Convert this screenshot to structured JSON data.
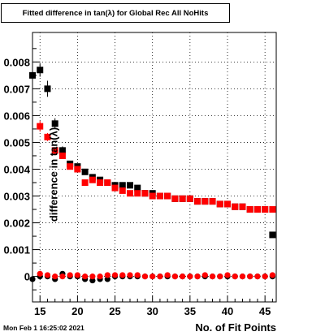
{
  "chart_data": {
    "type": "scatter",
    "title": "Fitted difference in tan(λ) for Global Rec All NoHits",
    "xlabel": "No. of Fit Points",
    "ylabel": "difference in tan(λ)",
    "xlim": [
      14,
      46.5
    ],
    "ylim": [
      -0.00095,
      0.0091
    ],
    "x_ticks": [
      15,
      20,
      25,
      30,
      35,
      40,
      45
    ],
    "y_ticks": [
      0,
      0.001,
      0.002,
      0.003,
      0.004,
      0.005,
      0.006,
      0.007,
      0.008
    ],
    "y_tick_labels": [
      "0",
      "0.001",
      "0.002",
      "0.003",
      "0.004",
      "0.005",
      "0.006",
      "0.007",
      "0.008"
    ],
    "grid": true,
    "series": [
      {
        "color": "#000000",
        "marker": "square",
        "x": [
          14,
          15,
          16,
          17,
          18,
          19,
          20,
          21,
          22,
          23,
          24,
          25,
          26,
          27,
          28,
          29,
          30,
          31,
          32,
          33,
          34,
          35,
          36,
          37,
          38,
          39,
          40,
          41,
          42,
          43,
          44,
          45,
          46
        ],
        "y": [
          0.0075,
          0.0077,
          0.007,
          0.0057,
          0.0047,
          0.0042,
          0.0041,
          0.0039,
          0.0037,
          0.0036,
          0.0035,
          0.0034,
          0.0034,
          0.0034,
          0.0033,
          0.0031,
          0.0031,
          0.003,
          0.003,
          0.0029,
          0.0029,
          0.0029,
          0.0028,
          0.0028,
          0.0028,
          0.0027,
          0.0027,
          0.0026,
          0.0026,
          0.0025,
          0.0025,
          0.0025,
          0.00155
        ],
        "yerr": [
          0.0003,
          0.00025,
          0.0003,
          0.0002,
          0.00015,
          0.0001,
          0.0001,
          8e-05,
          8e-05,
          6e-05,
          6e-05,
          5e-05,
          5e-05,
          5e-05,
          5e-05,
          4e-05,
          4e-05,
          4e-05,
          4e-05,
          4e-05,
          4e-05,
          4e-05,
          4e-05,
          4e-05,
          4e-05,
          4e-05,
          4e-05,
          4e-05,
          4e-05,
          4e-05,
          4e-05,
          4e-05,
          0.0001
        ]
      },
      {
        "color": "#ff0000",
        "marker": "square",
        "x": [
          15,
          16,
          17,
          18,
          19,
          20,
          21,
          22,
          23,
          24,
          25,
          26,
          27,
          28,
          29,
          30,
          31,
          32,
          33,
          34,
          35,
          36,
          37,
          38,
          39,
          40,
          41,
          42,
          43,
          44,
          45,
          46
        ],
        "y": [
          0.0056,
          0.0052,
          0.0047,
          0.0045,
          0.0041,
          0.004,
          0.0035,
          0.0036,
          0.0035,
          0.0035,
          0.0033,
          0.0032,
          0.0031,
          0.0031,
          0.0031,
          0.003,
          0.003,
          0.003,
          0.0029,
          0.0029,
          0.0029,
          0.0028,
          0.0028,
          0.0028,
          0.0027,
          0.0027,
          0.0026,
          0.0026,
          0.0025,
          0.0025,
          0.0025,
          0.0025
        ],
        "yerr": [
          0.0002,
          0.00015,
          0.00012,
          0.0001,
          0.0001,
          8e-05,
          6e-05,
          5e-05,
          5e-05,
          4e-05,
          4e-05,
          4e-05,
          3e-05,
          3e-05,
          3e-05,
          3e-05,
          3e-05,
          3e-05,
          3e-05,
          3e-05,
          3e-05,
          3e-05,
          3e-05,
          3e-05,
          3e-05,
          3e-05,
          3e-05,
          3e-05,
          3e-05,
          3e-05,
          3e-05,
          3e-05
        ]
      },
      {
        "color": "#000000",
        "marker": "circle",
        "x": [
          14,
          15,
          16,
          17,
          18,
          19,
          20,
          21,
          22,
          23,
          24,
          25,
          26,
          27,
          28,
          29,
          30,
          31,
          32,
          33,
          34,
          35,
          36,
          37,
          38,
          39,
          40,
          41,
          42,
          43,
          44,
          45,
          46
        ],
        "y": [
          -0.0001,
          0.0,
          0.0,
          -0.0001,
          0.0001,
          0.0,
          0.0,
          -0.0001,
          -0.00015,
          -0.0001,
          -0.0001,
          0.0,
          0.0,
          0.0,
          0.0,
          0.0,
          0.0,
          0.0,
          0.0,
          0.0,
          0.0,
          0.0,
          0.0,
          0.0,
          0.0,
          0.0,
          0.0,
          0.0,
          0.0,
          0.0,
          0.0,
          0.0,
          0.0
        ]
      },
      {
        "color": "#ff0000",
        "marker": "circle",
        "x": [
          15,
          16,
          17,
          18,
          19,
          20,
          21,
          22,
          23,
          24,
          25,
          26,
          27,
          28,
          29,
          30,
          31,
          32,
          33,
          34,
          35,
          36,
          37,
          38,
          39,
          40,
          41,
          42,
          43,
          44,
          45,
          46
        ],
        "y": [
          0.0001,
          5e-05,
          0.0,
          0.0,
          5e-05,
          5e-05,
          0.0,
          0.0,
          0.0,
          5e-05,
          5e-05,
          5e-05,
          5e-05,
          5e-05,
          0.0,
          0.0,
          0.0,
          5e-05,
          0.0,
          0.0,
          0.0,
          0.0,
          5e-05,
          0.0,
          0.0,
          5e-05,
          0.0,
          0.0,
          0.0,
          0.0,
          0.0,
          5e-05
        ]
      }
    ]
  },
  "footer": {
    "timestamp": "Mon Feb  1 16:25:02 2021"
  }
}
